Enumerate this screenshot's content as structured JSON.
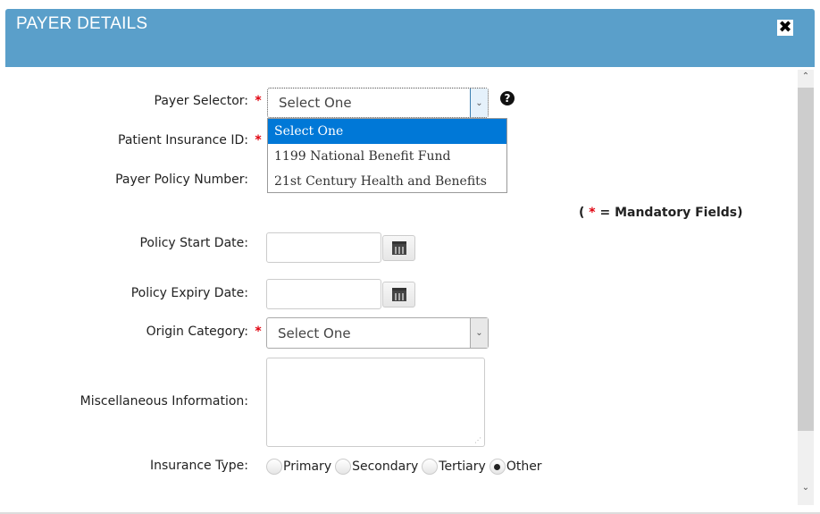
{
  "dialog": {
    "title": "PAYER DETAILS",
    "close_icon": "close-icon"
  },
  "form": {
    "payer_selector": {
      "label": "Payer Selector:",
      "value": "Select One",
      "required": true,
      "options": [
        "Select One",
        "1199 National Benefit Fund",
        "21st Century Health and Benefits"
      ],
      "highlighted": "Select One"
    },
    "patient_insurance_id": {
      "label": "Patient Insurance ID:",
      "required": true
    },
    "payer_policy_number": {
      "label": "Payer Policy Number:"
    },
    "mandatory_note": {
      "open": "(",
      "star": "*",
      "text": "= Mandatory Fields)"
    },
    "policy_start_date": {
      "label": "Policy Start Date:",
      "value": ""
    },
    "policy_expiry_date": {
      "label": "Policy Expiry Date:",
      "value": ""
    },
    "origin_category": {
      "label": "Origin Category:",
      "value": "Select One",
      "required": true
    },
    "misc_info": {
      "label": "Miscellaneous Information:",
      "value": ""
    },
    "insurance_type": {
      "label": "Insurance Type:",
      "options": [
        "Primary",
        "Secondary",
        "Tertiary",
        "Other"
      ],
      "selected": "Other"
    },
    "required_mark": "*"
  },
  "colors": {
    "header": "#5a9fca",
    "required": "#e0000d",
    "highlight": "#0078d7"
  }
}
